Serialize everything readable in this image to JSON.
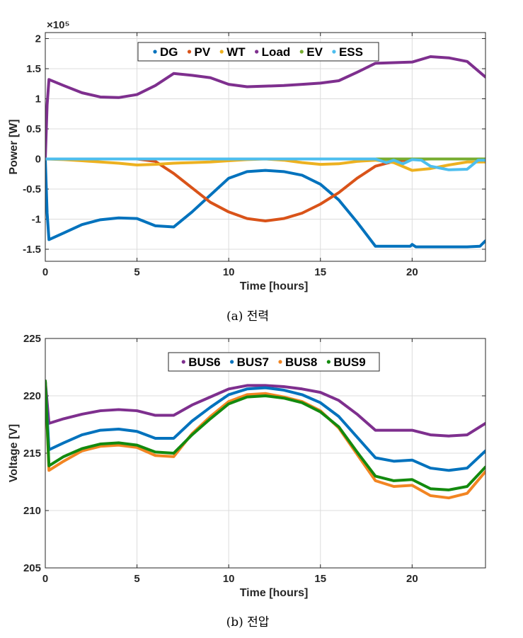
{
  "captions": [
    "(a) 전력",
    "(b) 전압"
  ],
  "chart_data": [
    {
      "type": "line",
      "title": "",
      "xlabel": "Time [hours]",
      "ylabel": "Power [W]",
      "y_exponent_label": "×10⁵",
      "xlim": [
        0,
        24
      ],
      "ylim": [
        -1.7,
        2.1
      ],
      "xticks": [
        0,
        5,
        10,
        15,
        20
      ],
      "yticks": [
        -1.5,
        -1,
        -0.5,
        0,
        0.5,
        1,
        1.5,
        2
      ],
      "ytick_labels": [
        "-1.5",
        "-1",
        "-0.5",
        "0",
        "0.5",
        "1",
        "1.5",
        "2"
      ],
      "grid": true,
      "legend_position": "top-center",
      "series": [
        {
          "name": "DG",
          "color": "#0072BD",
          "x": [
            0,
            0.1,
            0.2,
            1,
            2,
            3,
            4,
            5,
            6,
            7,
            8,
            9,
            10,
            11,
            12,
            13,
            14,
            15,
            16,
            17,
            18,
            19,
            19.9,
            20,
            20.2,
            21,
            22,
            23,
            23.7,
            24
          ],
          "y": [
            0,
            -0.9,
            -1.34,
            -1.23,
            -1.09,
            -1.01,
            -0.98,
            -0.99,
            -1.11,
            -1.13,
            -0.88,
            -0.6,
            -0.32,
            -0.21,
            -0.19,
            -0.21,
            -0.27,
            -0.42,
            -0.68,
            -1.05,
            -1.45,
            -1.45,
            -1.45,
            -1.42,
            -1.46,
            -1.46,
            -1.46,
            -1.46,
            -1.45,
            -1.36
          ]
        },
        {
          "name": "PV",
          "color": "#D95319",
          "x": [
            0,
            5,
            6,
            7,
            8,
            9,
            10,
            11,
            12,
            13,
            14,
            15,
            16,
            17,
            18,
            19,
            20,
            21,
            24
          ],
          "y": [
            0,
            0,
            -0.04,
            -0.24,
            -0.48,
            -0.72,
            -0.88,
            -0.99,
            -1.03,
            -0.99,
            -0.9,
            -0.75,
            -0.56,
            -0.32,
            -0.12,
            -0.04,
            -0.01,
            0,
            0
          ]
        },
        {
          "name": "WT",
          "color": "#EDB120",
          "x": [
            0,
            1,
            2,
            3,
            4,
            5,
            6,
            7,
            8,
            9,
            10,
            11,
            12,
            13,
            14,
            15,
            16,
            17,
            18,
            19,
            20,
            21,
            22,
            23,
            24
          ],
          "y": [
            0,
            -0.01,
            -0.03,
            -0.05,
            -0.07,
            -0.1,
            -0.09,
            -0.07,
            -0.06,
            -0.05,
            -0.03,
            -0.01,
            0,
            -0.02,
            -0.06,
            -0.09,
            -0.08,
            -0.04,
            -0.02,
            -0.06,
            -0.19,
            -0.16,
            -0.1,
            -0.05,
            -0.05
          ]
        },
        {
          "name": "Load",
          "color": "#7E2F8E",
          "x": [
            0,
            0.1,
            0.2,
            1,
            2,
            3,
            4,
            5,
            6,
            7,
            8,
            9,
            10,
            11,
            12,
            13,
            14,
            15,
            16,
            17,
            18,
            19,
            20,
            21,
            22,
            23,
            24
          ],
          "y": [
            0,
            0.9,
            1.32,
            1.22,
            1.1,
            1.03,
            1.02,
            1.07,
            1.22,
            1.42,
            1.39,
            1.35,
            1.24,
            1.2,
            1.21,
            1.22,
            1.24,
            1.26,
            1.3,
            1.44,
            1.59,
            1.6,
            1.61,
            1.7,
            1.68,
            1.62,
            1.36
          ]
        },
        {
          "name": "EV",
          "color": "#77AC30",
          "x": [
            0,
            18,
            19,
            20,
            21,
            22,
            23,
            24
          ],
          "y": [
            0,
            0,
            0,
            0,
            0,
            0,
            0,
            0
          ]
        },
        {
          "name": "ESS",
          "color": "#4DBEEE",
          "x": [
            0,
            18,
            18.6,
            19,
            19.5,
            20,
            20.5,
            21,
            21.5,
            22,
            23,
            23.6,
            24
          ],
          "y": [
            0,
            0,
            -0.06,
            -0.02,
            -0.08,
            -0.01,
            -0.02,
            -0.12,
            -0.15,
            -0.18,
            -0.17,
            -0.02,
            -0.02
          ]
        }
      ]
    },
    {
      "type": "line",
      "title": "",
      "xlabel": "Time [hours]",
      "ylabel": "Voltage [V]",
      "xlim": [
        0,
        24
      ],
      "ylim": [
        205,
        225
      ],
      "xticks": [
        0,
        5,
        10,
        15,
        20
      ],
      "yticks": [
        205,
        210,
        215,
        220,
        225
      ],
      "ytick_labels": [
        "205",
        "210",
        "215",
        "220",
        "225"
      ],
      "grid": true,
      "legend_position": "top-center",
      "series": [
        {
          "name": "BUS6",
          "color": "#7E2F8E",
          "x": [
            0,
            0.2,
            1,
            2,
            3,
            4,
            5,
            6,
            7,
            8,
            9,
            10,
            11,
            12,
            13,
            14,
            15,
            16,
            17,
            18,
            19,
            20,
            21,
            22,
            23,
            24
          ],
          "y": [
            221.3,
            217.6,
            218.0,
            218.4,
            218.7,
            218.8,
            218.7,
            218.3,
            218.3,
            219.2,
            219.9,
            220.6,
            220.9,
            220.9,
            220.8,
            220.6,
            220.3,
            219.6,
            218.4,
            217.0,
            217.0,
            217.0,
            216.6,
            216.5,
            216.6,
            217.6
          ]
        },
        {
          "name": "BUS7",
          "color": "#0072BD",
          "x": [
            0,
            0.2,
            1,
            2,
            3,
            4,
            5,
            6,
            7,
            8,
            9,
            10,
            11,
            12,
            13,
            14,
            15,
            16,
            17,
            18,
            19,
            20,
            21,
            22,
            23,
            24
          ],
          "y": [
            221.3,
            215.3,
            215.9,
            216.6,
            217.0,
            217.1,
            216.9,
            216.3,
            216.3,
            217.8,
            219.0,
            220.1,
            220.6,
            220.7,
            220.5,
            220.1,
            219.4,
            218.2,
            216.4,
            214.6,
            214.3,
            214.4,
            213.7,
            213.5,
            213.7,
            215.2
          ]
        },
        {
          "name": "BUS8",
          "color": "#F28522",
          "x": [
            0,
            0.2,
            1,
            2,
            3,
            4,
            5,
            6,
            7,
            8,
            9,
            10,
            11,
            12,
            13,
            14,
            15,
            16,
            17,
            18,
            19,
            20,
            21,
            22,
            23,
            24
          ],
          "y": [
            221.3,
            213.5,
            214.3,
            215.2,
            215.6,
            215.7,
            215.5,
            214.8,
            214.7,
            216.7,
            218.2,
            219.5,
            220.1,
            220.2,
            219.9,
            219.5,
            218.7,
            217.2,
            214.9,
            212.6,
            212.1,
            212.2,
            211.3,
            211.1,
            211.5,
            213.4
          ]
        },
        {
          "name": "BUS9",
          "color": "#138A0E",
          "x": [
            0,
            0.2,
            1,
            2,
            3,
            4,
            5,
            6,
            7,
            8,
            9,
            10,
            11,
            12,
            13,
            14,
            15,
            16,
            17,
            18,
            19,
            20,
            21,
            22,
            23,
            24
          ],
          "y": [
            221.3,
            213.9,
            214.7,
            215.4,
            215.8,
            215.9,
            215.7,
            215.1,
            215.0,
            216.6,
            218.0,
            219.3,
            219.9,
            220.0,
            219.8,
            219.4,
            218.6,
            217.3,
            215.1,
            213.0,
            212.6,
            212.7,
            211.9,
            211.8,
            212.1,
            213.8
          ]
        }
      ]
    }
  ]
}
